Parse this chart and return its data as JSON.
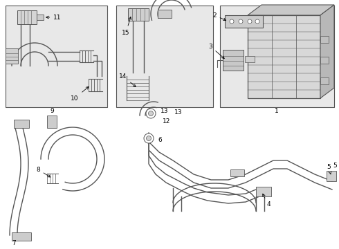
{
  "bg_color": "#ffffff",
  "box_bg": "#e8e8e8",
  "line_color": "#555555",
  "lw": 1.0,
  "fig_w": 4.9,
  "fig_h": 3.6,
  "dpi": 100
}
